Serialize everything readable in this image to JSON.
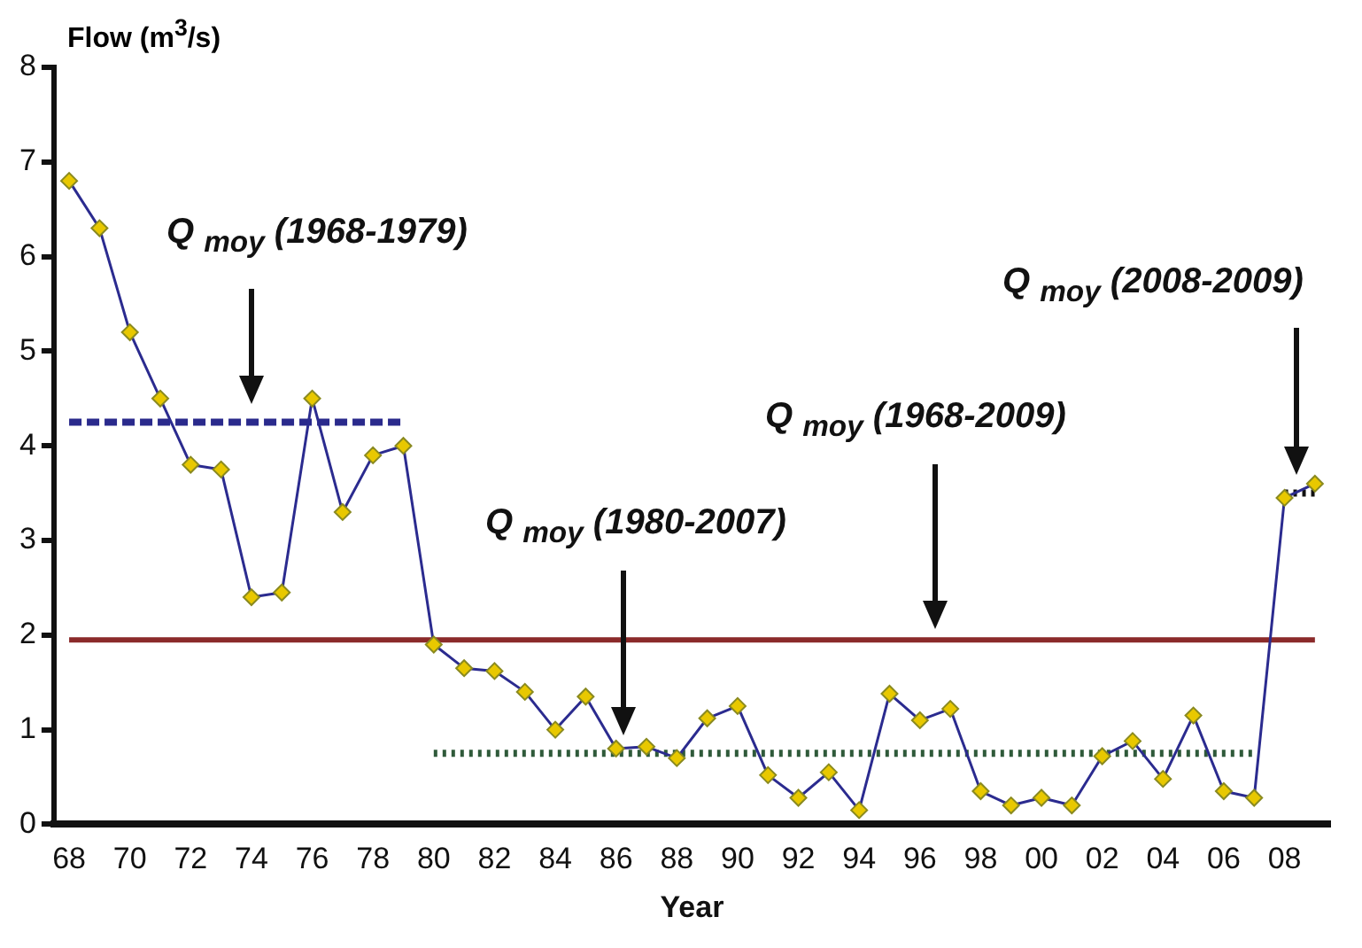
{
  "chart_data": {
    "type": "line",
    "xlabel": "Year",
    "ylabel": "Flow (m$^{3}$/s)",
    "categories": [
      "68",
      null,
      "70",
      null,
      "72",
      null,
      "74",
      null,
      "76",
      null,
      "78",
      null,
      "80",
      null,
      "82",
      null,
      "84",
      null,
      "86",
      null,
      "88",
      null,
      "90",
      null,
      "92",
      null,
      "94",
      null,
      "96",
      null,
      "98",
      null,
      "00",
      null,
      "02",
      null,
      "04",
      null,
      "06",
      null,
      "08",
      null
    ],
    "ylim": [
      0,
      8
    ],
    "yticks": [
      0,
      1,
      2,
      3,
      4,
      5,
      6,
      7,
      8
    ],
    "grid": false,
    "marker": "diamond",
    "series": [
      {
        "color": "#2b2b8f",
        "line_style": "solid",
        "values": [
          6.8,
          6.3,
          5.2,
          4.5,
          3.8,
          3.75,
          2.4,
          2.45,
          4.5,
          3.3,
          3.9,
          4.0,
          1.9,
          1.65,
          1.62,
          1.4,
          1.0,
          1.35,
          0.8,
          0.82,
          0.7,
          1.12,
          1.25,
          0.52,
          0.28,
          0.55,
          0.15,
          1.38,
          1.1,
          1.22,
          0.35,
          0.2,
          0.28,
          0.2,
          0.72,
          0.88,
          0.48,
          1.15,
          0.35,
          0.28,
          3.45,
          3.6
        ]
      },
      {
        "color": "#2a2a8c",
        "marker": "none",
        "line_style": "dashed",
        "values": [
          4.25,
          4.25,
          4.25,
          4.25,
          4.25,
          4.25,
          4.25,
          4.25,
          4.25,
          4.25,
          4.25,
          4.25,
          null,
          null,
          null,
          null,
          null,
          null,
          null,
          null,
          null,
          null,
          null,
          null,
          null,
          null,
          null,
          null,
          null,
          null,
          null,
          null,
          null,
          null,
          null,
          null,
          null,
          null,
          null,
          null,
          null,
          null
        ]
      },
      {
        "color": "#8b2a2a",
        "marker": "none",
        "line_style": "solid",
        "values": [
          1.95,
          1.95,
          1.95,
          1.95,
          1.95,
          1.95,
          1.95,
          1.95,
          1.95,
          1.95,
          1.95,
          1.95,
          1.95,
          1.95,
          1.95,
          1.95,
          1.95,
          1.95,
          1.95,
          1.95,
          1.95,
          1.95,
          1.95,
          1.95,
          1.95,
          1.95,
          1.95,
          1.95,
          1.95,
          1.95,
          1.95,
          1.95,
          1.95,
          1.95,
          1.95,
          1.95,
          1.95,
          1.95,
          1.95,
          1.95,
          1.95,
          1.95
        ]
      },
      {
        "color": "#2f5a3a",
        "marker": "none",
        "line_style": "dotted",
        "values": [
          null,
          null,
          null,
          null,
          null,
          null,
          null,
          null,
          null,
          null,
          null,
          null,
          0.75,
          0.75,
          0.75,
          0.75,
          0.75,
          0.75,
          0.75,
          0.75,
          0.75,
          0.75,
          0.75,
          0.75,
          0.75,
          0.75,
          0.75,
          0.75,
          0.75,
          0.75,
          0.75,
          0.75,
          0.75,
          0.75,
          0.75,
          0.75,
          0.75,
          0.75,
          0.75,
          0.75,
          null,
          null
        ]
      },
      {
        "color": "#111111",
        "marker": "none",
        "line_style": "dotted",
        "values": [
          null,
          null,
          null,
          null,
          null,
          null,
          null,
          null,
          null,
          null,
          null,
          null,
          null,
          null,
          null,
          null,
          null,
          null,
          null,
          null,
          null,
          null,
          null,
          null,
          null,
          null,
          null,
          null,
          null,
          null,
          null,
          null,
          null,
          null,
          null,
          null,
          null,
          null,
          null,
          null,
          3.5,
          3.5
        ]
      }
    ],
    "annotations": [
      "Q $_{moy}$ (1968-1979)",
      "Q $_{moy}$ (1980-2007)",
      "Q $_{moy}$ (1968-2009)",
      "Q $_{moy}$ (2008-2009)"
    ]
  }
}
